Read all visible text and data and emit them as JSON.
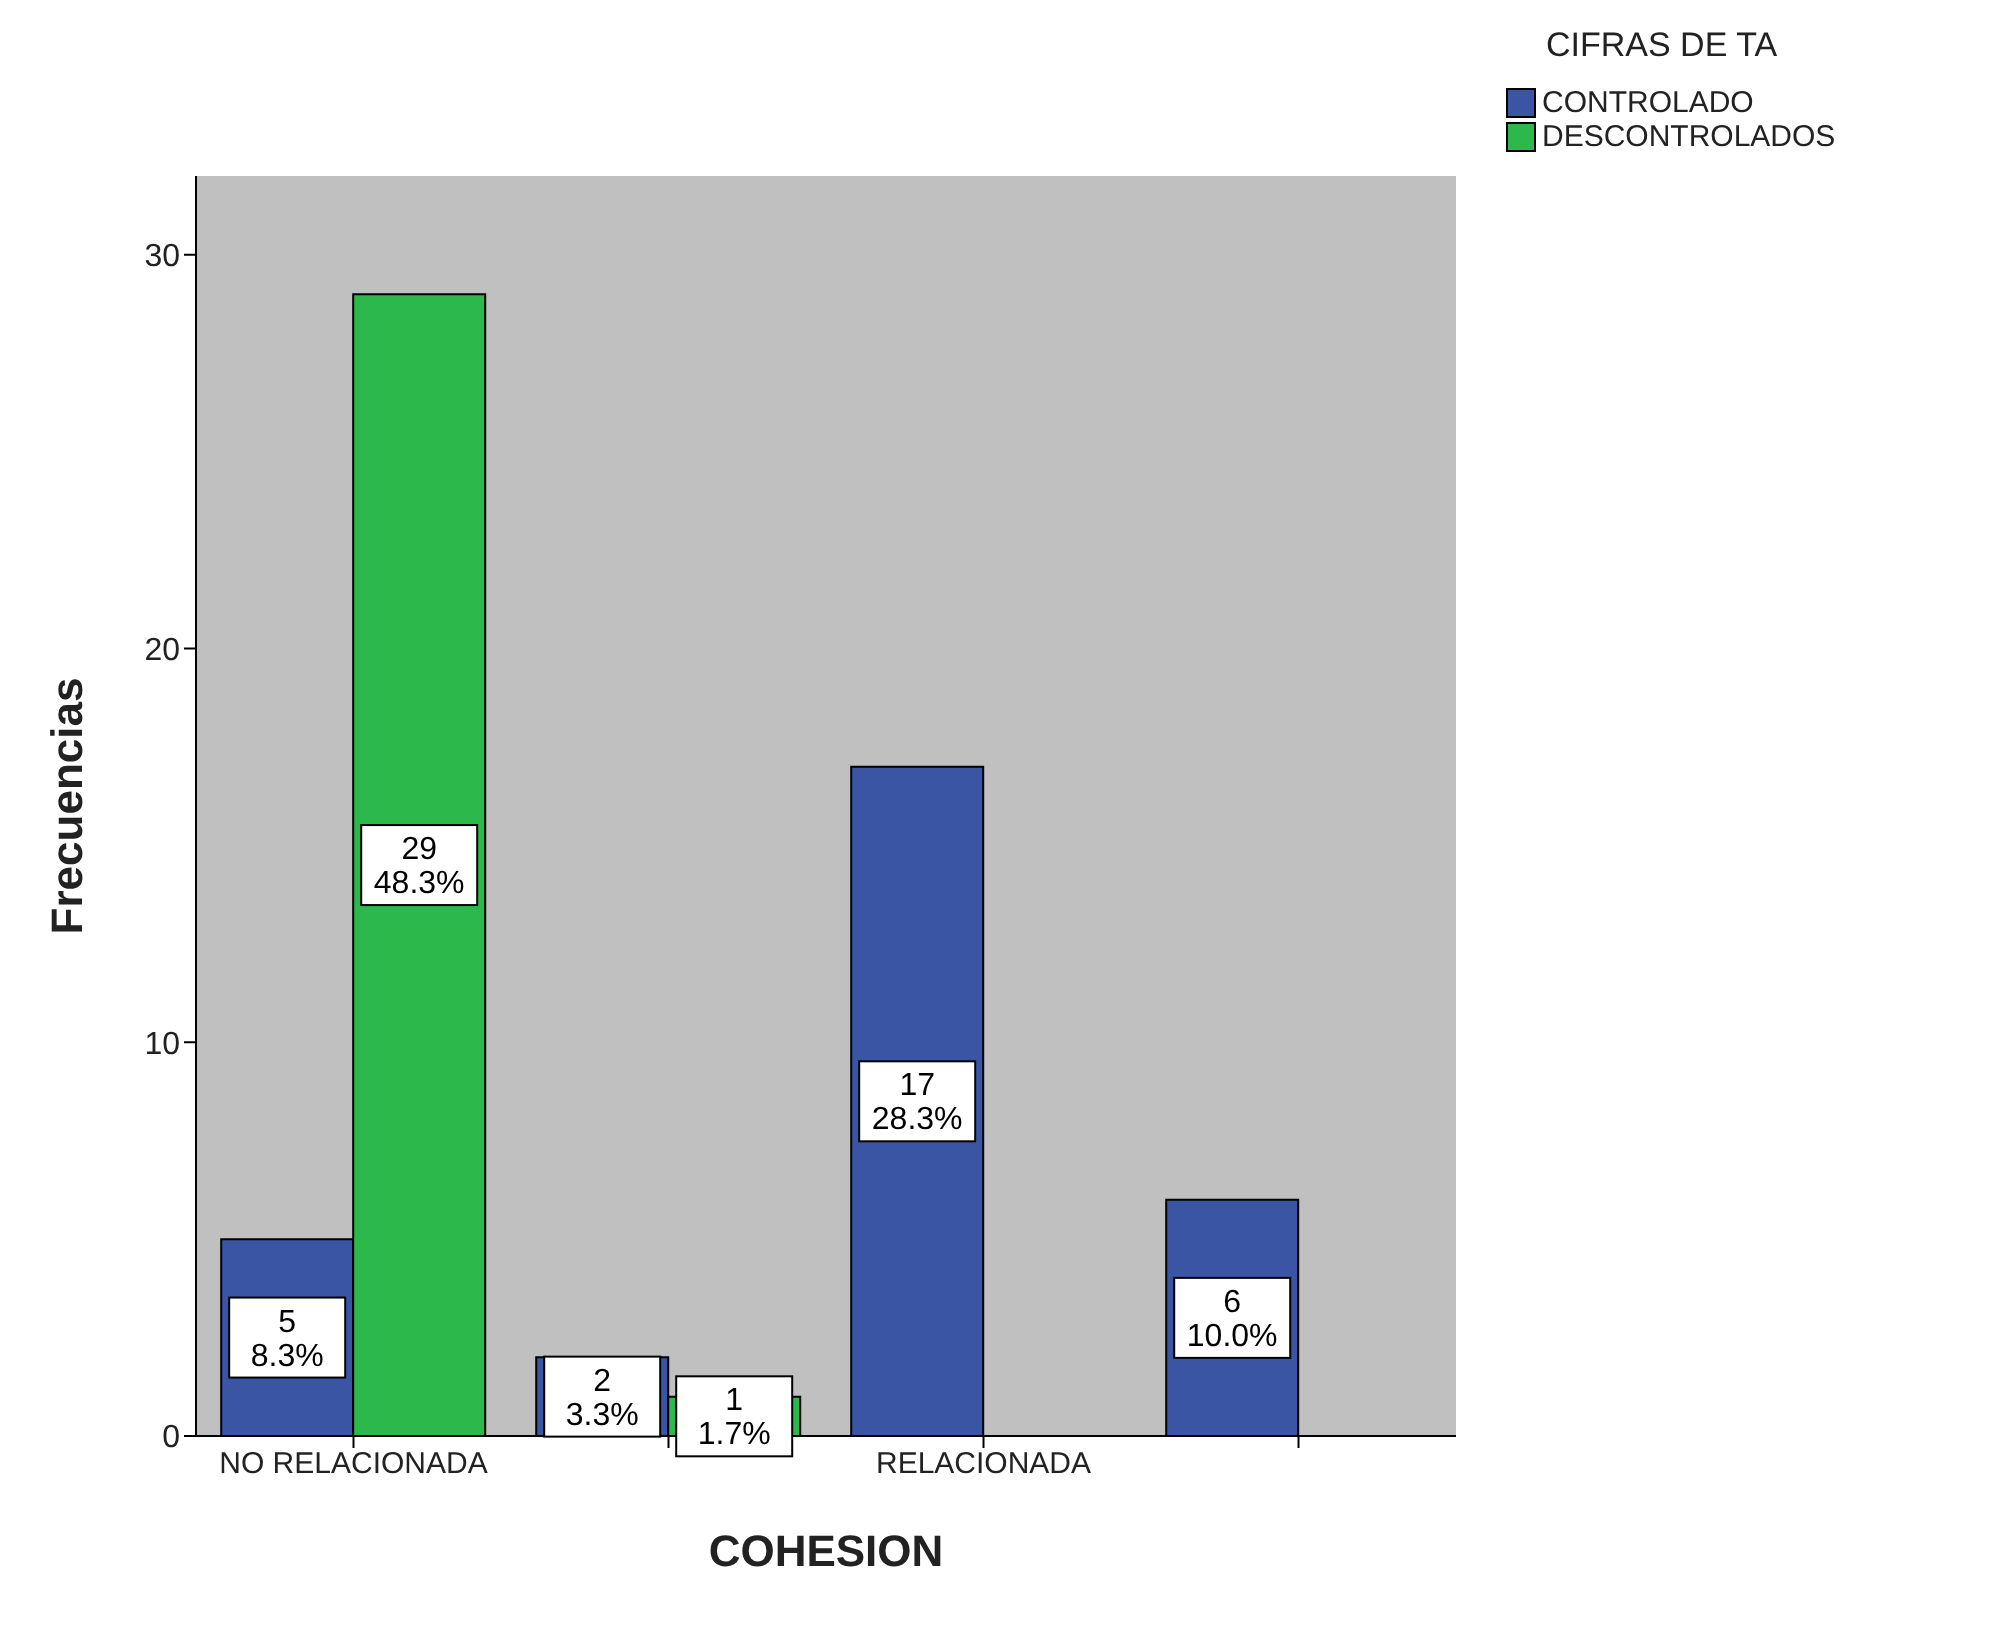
{
  "chart_data": {
    "type": "bar",
    "xlabel": "COHESION",
    "ylabel": "Frecuencias",
    "legend_title": "CIFRAS DE TA",
    "categories": [
      "NO RELACIONADA",
      null,
      "RELACIONADA",
      null
    ],
    "series": [
      {
        "name": "CONTROLADO",
        "color": "#3b55a5",
        "values": [
          5,
          2,
          17,
          6
        ],
        "value_labels": [
          "5\n8.3%",
          "2\n3.3%",
          "17\n28.3%",
          "6\n10.0%"
        ]
      },
      {
        "name": "DESCONTROLADOS",
        "color": "#2db84b",
        "values": [
          29,
          1,
          null,
          null
        ],
        "value_labels": [
          "29\n48.3%",
          "1\n1.7%",
          null,
          null
        ]
      }
    ],
    "ylim": [
      0,
      32
    ],
    "yticks": [
      0,
      10,
      20,
      30
    ],
    "grid": false,
    "legend": "top right"
  }
}
